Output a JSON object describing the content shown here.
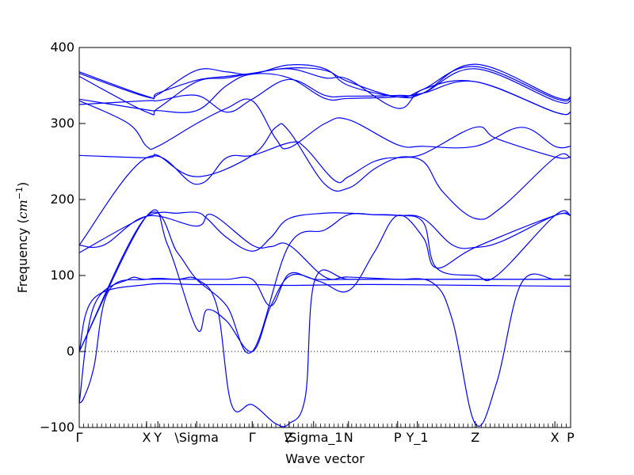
{
  "chart_data": {
    "type": "line",
    "xlabel": "Wave vector",
    "ylabel": "Frequency",
    "ylabel_unit": "cm",
    "ylabel_unit_exp": "−1",
    "ylim": [
      -100,
      400
    ],
    "yticks": [
      -100,
      0,
      100,
      200,
      300,
      400
    ],
    "xlim": [
      0,
      1
    ],
    "grid": false,
    "zero_line": true,
    "line_color": "#0000ff",
    "high_symmetry_points": [
      {
        "label": "Γ",
        "x": 0.0
      },
      {
        "label": "X",
        "x": 0.137
      },
      {
        "label": "Y",
        "x": 0.16
      },
      {
        "label": "\\Sigma",
        "x": 0.239
      },
      {
        "label": "Γ",
        "x": 0.352
      },
      {
        "label": "Z",
        "x": 0.427
      },
      {
        "label": "\\Sigma_1",
        "x": 0.477
      },
      {
        "label": "N",
        "x": 0.548
      },
      {
        "label": "P",
        "x": 0.648
      },
      {
        "label": "Y_1",
        "x": 0.688
      },
      {
        "label": "Z",
        "x": 0.806
      },
      {
        "label": "X",
        "x": 0.968
      },
      {
        "label": "P",
        "x": 1.0
      }
    ],
    "series": [
      {
        "x": [
          0,
          0.03,
          0.137,
          0.239,
          0.352,
          0.427,
          0.548,
          0.648,
          0.806,
          0.968,
          1.0
        ],
        "values": [
          0,
          70,
          88,
          88,
          88,
          87,
          88,
          88,
          87,
          86,
          86
        ]
      },
      {
        "x": [
          0,
          0.03,
          0.1,
          0.137,
          0.239,
          0.3,
          0.352,
          0.39,
          0.427,
          0.48,
          0.548,
          0.6,
          0.648,
          0.72,
          0.76,
          0.806,
          0.85,
          0.9,
          0.968,
          1.0
        ],
        "values": [
          -68,
          60,
          95,
          95,
          95,
          95,
          95,
          60,
          102,
          95,
          95,
          95,
          95,
          90,
          40,
          -95,
          -40,
          90,
          95,
          95
        ]
      },
      {
        "x": [
          0,
          0.01,
          0.03,
          0.06,
          0.137,
          0.2,
          0.239,
          0.28,
          0.31,
          0.352,
          0.4,
          0.427,
          0.46,
          0.48,
          0.548,
          0.648,
          0.806,
          0.968,
          1.0
        ],
        "values": [
          -68,
          -60,
          -20,
          80,
          95,
          95,
          95,
          60,
          -70,
          -70,
          -95,
          -95,
          -60,
          95,
          95,
          95,
          95,
          95,
          95
        ]
      },
      {
        "x": [
          0,
          0.137,
          0.2,
          0.239,
          0.3,
          0.352,
          0.427,
          0.5,
          0.548,
          0.6,
          0.648,
          0.7,
          0.727,
          0.806,
          0.85,
          0.968,
          1.0
        ],
        "values": [
          0,
          178,
          130,
          95,
          60,
          0,
          140,
          160,
          180,
          180,
          179,
          170,
          110,
          100,
          100,
          179,
          179
        ]
      },
      {
        "x": [
          0,
          0.137,
          0.18,
          0.239,
          0.26,
          0.3,
          0.352,
          0.39,
          0.43,
          0.49,
          0.548,
          0.6,
          0.648,
          0.7,
          0.727,
          0.806,
          0.968,
          1.0
        ],
        "values": [
          0,
          178,
          140,
          30,
          55,
          40,
          0,
          60,
          100,
          92,
          80,
          130,
          179,
          150,
          110,
          137,
          179,
          179
        ]
      },
      {
        "x": [
          0,
          0.137,
          0.2,
          0.239,
          0.26,
          0.3,
          0.352,
          0.39,
          0.427,
          0.5,
          0.548,
          0.6,
          0.648,
          0.7,
          0.76,
          0.806,
          0.86,
          0.968,
          1.0
        ],
        "values": [
          130,
          178,
          182,
          183,
          175,
          150,
          132,
          150,
          175,
          182,
          182,
          180,
          179,
          175,
          140,
          137,
          145,
          179,
          179
        ]
      },
      {
        "x": [
          0,
          0.05,
          0.137,
          0.239,
          0.27,
          0.352,
          0.39,
          0.427,
          0.5,
          0.548,
          0.648,
          0.7,
          0.806,
          0.968,
          1.0
        ],
        "values": [
          140,
          140,
          178,
          165,
          180,
          140,
          138,
          140,
          98,
          98,
          95,
          95,
          95,
          95,
          95
        ]
      },
      {
        "x": [
          0,
          0.137,
          0.239,
          0.3,
          0.352,
          0.43,
          0.46,
          0.52,
          0.548,
          0.6,
          0.648,
          0.7,
          0.74,
          0.806,
          0.86,
          0.968,
          1.0
        ],
        "values": [
          140,
          255,
          220,
          255,
          258,
          275,
          268,
          225,
          230,
          250,
          255,
          250,
          210,
          175,
          190,
          255,
          255
        ]
      },
      {
        "x": [
          0,
          0.137,
          0.16,
          0.239,
          0.352,
          0.4,
          0.427,
          0.5,
          0.548,
          0.6,
          0.648,
          0.7,
          0.806,
          0.85,
          0.968,
          1.0
        ],
        "values": [
          258,
          255,
          258,
          230,
          258,
          295,
          290,
          220,
          215,
          240,
          255,
          260,
          295,
          280,
          256,
          256
        ]
      },
      {
        "x": [
          0,
          0.1,
          0.137,
          0.16,
          0.239,
          0.3,
          0.352,
          0.4,
          0.427,
          0.5,
          0.548,
          0.648,
          0.7,
          0.806,
          0.9,
          0.968,
          1.0
        ],
        "values": [
          330,
          300,
          270,
          270,
          300,
          320,
          330,
          280,
          268,
          300,
          305,
          272,
          270,
          270,
          295,
          270,
          270
        ]
      },
      {
        "x": [
          0,
          0.137,
          0.16,
          0.239,
          0.3,
          0.352,
          0.427,
          0.5,
          0.548,
          0.648,
          0.7,
          0.806,
          0.968,
          1.0
        ],
        "values": [
          325,
          330,
          330,
          337,
          315,
          332,
          358,
          337,
          336,
          337,
          340,
          372,
          330,
          330
        ]
      },
      {
        "x": [
          0,
          0.137,
          0.16,
          0.239,
          0.3,
          0.352,
          0.427,
          0.5,
          0.548,
          0.648,
          0.7,
          0.806,
          0.968,
          1.0
        ],
        "values": [
          332,
          318,
          317,
          317,
          350,
          365,
          360,
          333,
          333,
          335,
          340,
          355,
          315,
          315
        ]
      },
      {
        "x": [
          0,
          0.137,
          0.16,
          0.239,
          0.3,
          0.352,
          0.427,
          0.5,
          0.548,
          0.648,
          0.7,
          0.806,
          0.968,
          1.0
        ],
        "values": [
          362,
          315,
          320,
          355,
          360,
          366,
          372,
          360,
          358,
          320,
          345,
          355,
          315,
          315
        ]
      },
      {
        "x": [
          0,
          0.137,
          0.16,
          0.239,
          0.3,
          0.352,
          0.427,
          0.5,
          0.548,
          0.648,
          0.7,
          0.806,
          0.968,
          1.0
        ],
        "values": [
          366,
          335,
          340,
          357,
          362,
          366,
          373,
          370,
          355,
          335,
          345,
          375,
          333,
          333
        ]
      },
      {
        "x": [
          0,
          0.137,
          0.16,
          0.239,
          0.3,
          0.352,
          0.427,
          0.5,
          0.548,
          0.648,
          0.7,
          0.806,
          0.968,
          1.0
        ],
        "values": [
          368,
          336,
          338,
          370,
          368,
          365,
          377,
          372,
          350,
          335,
          340,
          378,
          335,
          335
        ]
      }
    ]
  }
}
